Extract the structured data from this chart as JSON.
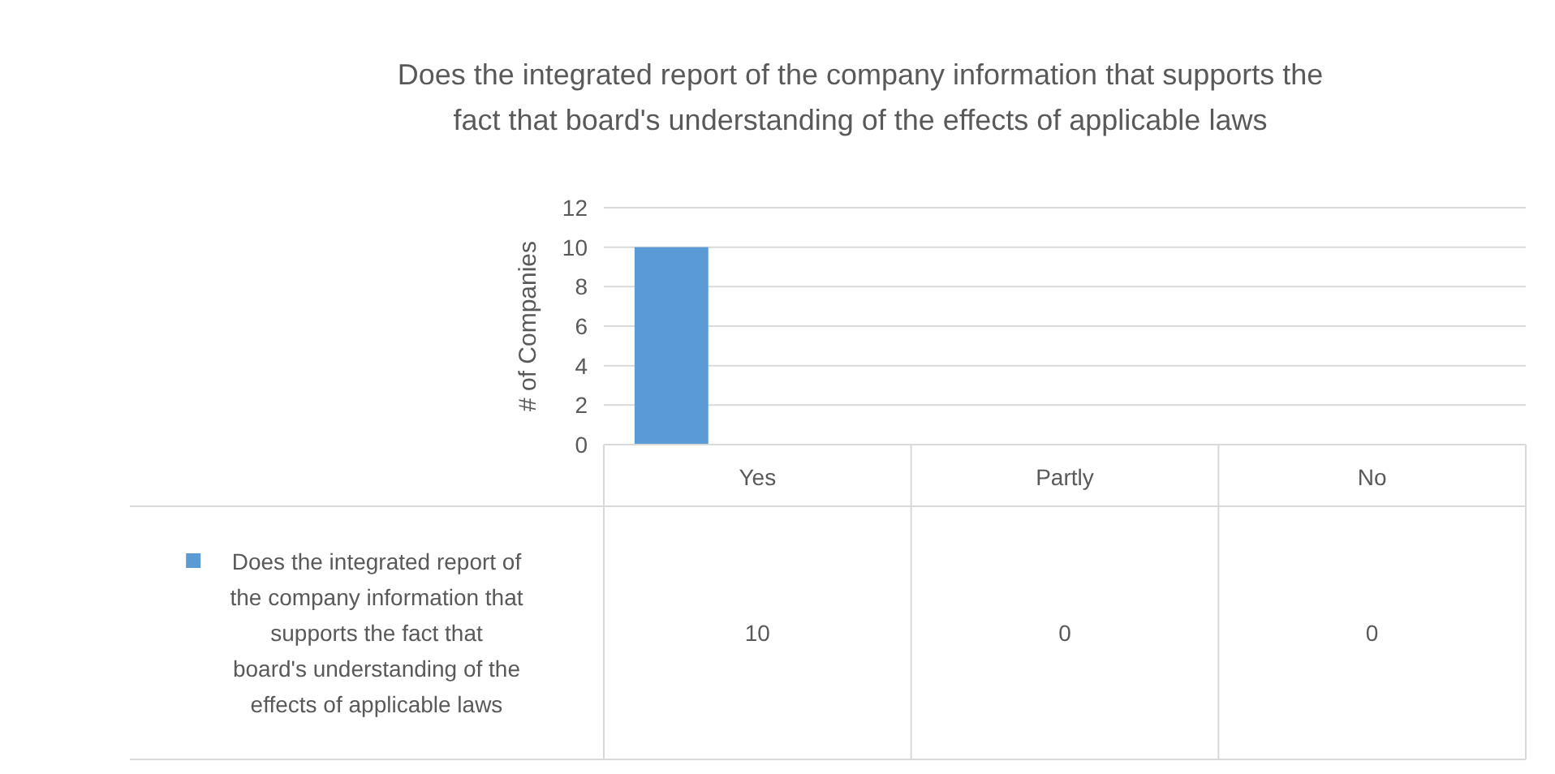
{
  "chart_data": {
    "type": "bar",
    "title": "Does the integrated report of the company information that supports the fact that board's understanding of the effects of applicable laws",
    "ylabel": "# of Companies",
    "categories": [
      "Yes",
      "Partly",
      "No"
    ],
    "series": [
      {
        "name": "Does the integrated report of the company information that supports the fact that board's understanding of the effects of applicable laws",
        "color": "#5b9bd5",
        "values": [
          10,
          0,
          0
        ]
      }
    ],
    "ylim": [
      0,
      12
    ],
    "yticks": [
      0,
      2,
      4,
      6,
      8,
      10,
      12
    ],
    "grid": "y",
    "data_labels": true,
    "legend": "bottom left"
  }
}
